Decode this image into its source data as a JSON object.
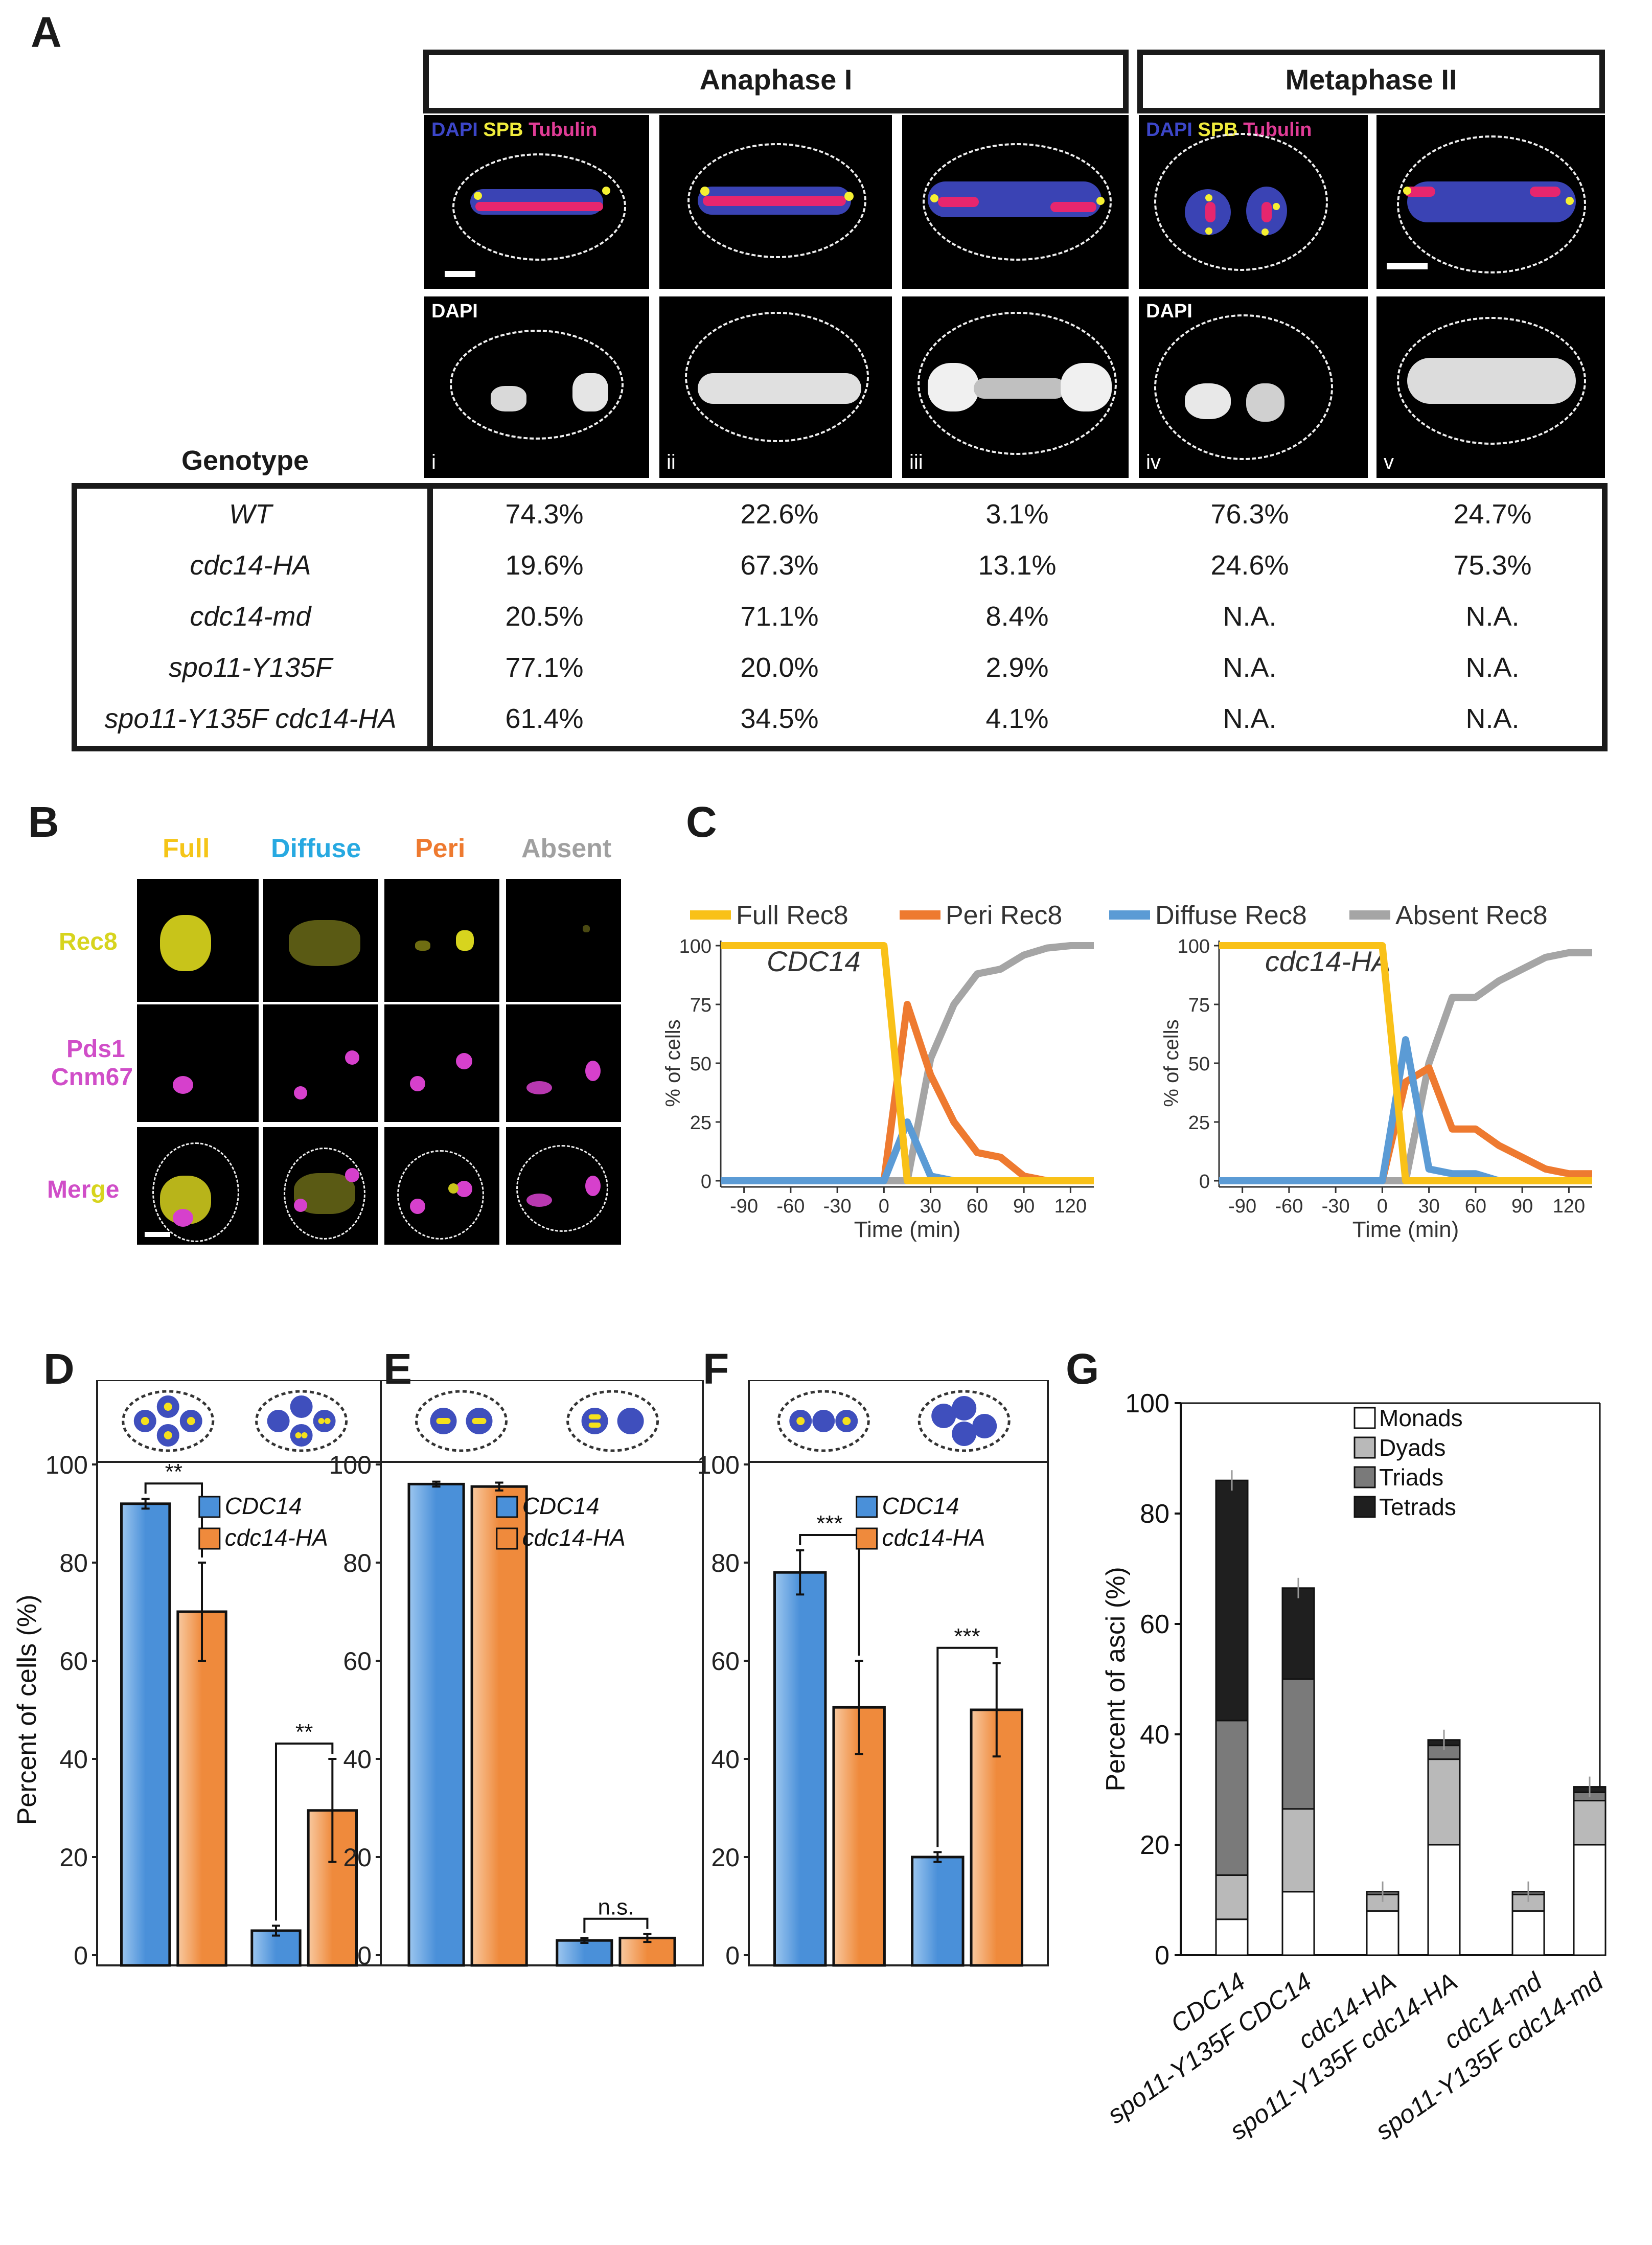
{
  "panels": {
    "A": "A",
    "B": "B",
    "C": "C",
    "D": "D",
    "E": "E",
    "F": "F",
    "G": "G"
  },
  "panelA": {
    "headers": [
      "Anaphase I",
      "Metaphase II"
    ],
    "stain_labels": {
      "dapi": "DAPI",
      "spb": "SPB",
      "tubulin": "Tubulin",
      "dapi_only": "DAPI"
    },
    "roman": [
      "i",
      "ii",
      "iii",
      "iv",
      "v"
    ],
    "genotype_label": "Genotype",
    "rows": [
      {
        "genotype": "WT",
        "values": [
          "74.3%",
          "22.6%",
          "3.1%",
          "76.3%",
          "24.7%"
        ]
      },
      {
        "genotype": "cdc14-HA",
        "values": [
          "19.6%",
          "67.3%",
          "13.1%",
          "24.6%",
          "75.3%"
        ]
      },
      {
        "genotype": "cdc14-md",
        "values": [
          "20.5%",
          "71.1%",
          "8.4%",
          "N.A.",
          "N.A."
        ]
      },
      {
        "genotype": "spo11-Y135F",
        "values": [
          "77.1%",
          "20.0%",
          "2.9%",
          "N.A.",
          "N.A."
        ]
      },
      {
        "genotype": "spo11-Y135F cdc14-HA",
        "values": [
          "61.4%",
          "34.5%",
          "4.1%",
          "N.A.",
          "N.A."
        ]
      }
    ]
  },
  "panelB": {
    "columns": [
      "Full",
      "Diffuse",
      "Peri",
      "Absent"
    ],
    "rows": [
      "Rec8",
      "Pds1",
      "Cnm67",
      "Merge"
    ],
    "merge_letters": [
      "Mer",
      "g",
      "e"
    ]
  },
  "panelC": {
    "legend": [
      "Full Rec8",
      "Peri Rec8",
      "Diffuse Rec8",
      "Absent Rec8"
    ],
    "colors": {
      "full": "#f9c118",
      "peri": "#ee7a30",
      "diffuse": "#5b9bd5",
      "absent": "#a5a5a5"
    },
    "chart_data": [
      {
        "type": "line",
        "title": "CDC14",
        "xlabel": "Time (min)",
        "ylabel": "% of cells",
        "x": [
          -105,
          -90,
          -60,
          -30,
          0,
          15,
          30,
          45,
          60,
          75,
          90,
          105,
          120,
          135
        ],
        "xticks": [
          -90,
          -60,
          -30,
          0,
          30,
          60,
          90,
          120
        ],
        "yticks": [
          0,
          25,
          50,
          75,
          100
        ],
        "xlim": [
          -105,
          135
        ],
        "ylim": [
          0,
          100
        ],
        "series": [
          {
            "name": "Full Rec8",
            "values": [
              100,
              100,
              100,
              100,
              100,
              0,
              0,
              0,
              0,
              0,
              0,
              0,
              0,
              0
            ]
          },
          {
            "name": "Peri Rec8",
            "values": [
              0,
              0,
              0,
              0,
              0,
              75,
              45,
              25,
              12,
              10,
              2,
              0,
              0,
              0
            ]
          },
          {
            "name": "Diffuse Rec8",
            "values": [
              0,
              0,
              0,
              0,
              0,
              25,
              2,
              0,
              0,
              0,
              0,
              0,
              0,
              0
            ]
          },
          {
            "name": "Absent Rec8",
            "values": [
              0,
              0,
              0,
              0,
              0,
              0,
              52,
              75,
              88,
              90,
              96,
              99,
              100,
              100
            ]
          }
        ]
      },
      {
        "type": "line",
        "title": "cdc14-HA",
        "xlabel": "Time (min)",
        "ylabel": "% of cells",
        "x": [
          -105,
          -90,
          -60,
          -30,
          0,
          15,
          30,
          45,
          60,
          75,
          90,
          105,
          120,
          135
        ],
        "xticks": [
          -90,
          -60,
          -30,
          0,
          30,
          60,
          90,
          120
        ],
        "yticks": [
          0,
          25,
          50,
          75,
          100
        ],
        "xlim": [
          -105,
          135
        ],
        "ylim": [
          0,
          100
        ],
        "series": [
          {
            "name": "Full Rec8",
            "values": [
              100,
              100,
              100,
              100,
              100,
              0,
              0,
              0,
              0,
              0,
              0,
              0,
              0,
              0
            ]
          },
          {
            "name": "Peri Rec8",
            "values": [
              0,
              0,
              0,
              0,
              0,
              42,
              48,
              22,
              22,
              15,
              10,
              5,
              3,
              3
            ]
          },
          {
            "name": "Diffuse Rec8",
            "values": [
              0,
              0,
              0,
              0,
              0,
              60,
              5,
              3,
              3,
              0,
              0,
              0,
              0,
              0
            ]
          },
          {
            "name": "Absent Rec8",
            "values": [
              0,
              0,
              0,
              0,
              0,
              0,
              50,
              78,
              78,
              85,
              90,
              95,
              97,
              97
            ]
          }
        ]
      }
    ]
  },
  "panelDEF": {
    "legend": [
      "CDC14",
      "cdc14-HA"
    ],
    "colors": {
      "cdc14": "#4a90d9",
      "cdc14ha": "#ef8a3c"
    },
    "ylabel": "Percent of cells (%)",
    "chart_data": [
      {
        "type": "bar",
        "panel": "D",
        "series": [
          {
            "name": "CDC14",
            "values": [
              92,
              5
            ]
          },
          {
            "name": "cdc14-HA",
            "values": [
              70,
              29.5
            ]
          }
        ],
        "errors": [
          [
            1,
            1
          ],
          [
            10,
            10.5
          ]
        ],
        "sig": [
          "**",
          "**"
        ],
        "ylim": [
          0,
          100
        ],
        "yticks": [
          0,
          20,
          40,
          60,
          80,
          100
        ]
      },
      {
        "type": "bar",
        "panel": "E",
        "series": [
          {
            "name": "CDC14",
            "values": [
              96,
              3
            ]
          },
          {
            "name": "cdc14-HA",
            "values": [
              95.5,
              3.5
            ]
          }
        ],
        "errors": [
          [
            0.5,
            0.5
          ],
          [
            0.8,
            0.8
          ]
        ],
        "sig": [
          null,
          "n.s."
        ],
        "ylim": [
          0,
          100
        ],
        "yticks": [
          0,
          20,
          40,
          60,
          80,
          100
        ]
      },
      {
        "type": "bar",
        "panel": "F",
        "series": [
          {
            "name": "CDC14",
            "values": [
              78,
              20
            ]
          },
          {
            "name": "cdc14-HA",
            "values": [
              50.5,
              50
            ]
          }
        ],
        "errors": [
          [
            4.5,
            1
          ],
          [
            9.5,
            9.5
          ]
        ],
        "sig": [
          "***",
          "***"
        ],
        "ylim": [
          0,
          100
        ],
        "yticks": [
          0,
          20,
          40,
          60,
          80,
          100
        ]
      }
    ]
  },
  "panelG": {
    "ylabel": "Percent of asci (%)",
    "legend": [
      "Monads",
      "Dyads",
      "Triads",
      "Tetrads"
    ],
    "colors": {
      "Monads": "#ffffff",
      "Dyads": "#b9b9b9",
      "Triads": "#7a7a7a",
      "Tetrads": "#1f1f1f"
    },
    "chart_data": {
      "type": "bar",
      "categories": [
        "CDC14",
        "spo11-Y135F CDC14",
        "cdc14-HA",
        "spo11-Y135F cdc14-HA",
        "cdc14-md",
        "spo11-Y135F cdc14-md"
      ],
      "series": [
        {
          "name": "Monads",
          "values": [
            6.5,
            11.5,
            8,
            20,
            8,
            20
          ]
        },
        {
          "name": "Dyads",
          "values": [
            8,
            15,
            3,
            15.5,
            3,
            8
          ]
        },
        {
          "name": "Triads",
          "values": [
            28,
            23.5,
            0.5,
            2.5,
            0.5,
            1.5
          ]
        },
        {
          "name": "Tetrads",
          "values": [
            43.5,
            16.5,
            0,
            1,
            0,
            1
          ]
        }
      ],
      "ylim": [
        0,
        100
      ],
      "yticks": [
        0,
        20,
        40,
        60,
        80,
        100
      ]
    }
  }
}
